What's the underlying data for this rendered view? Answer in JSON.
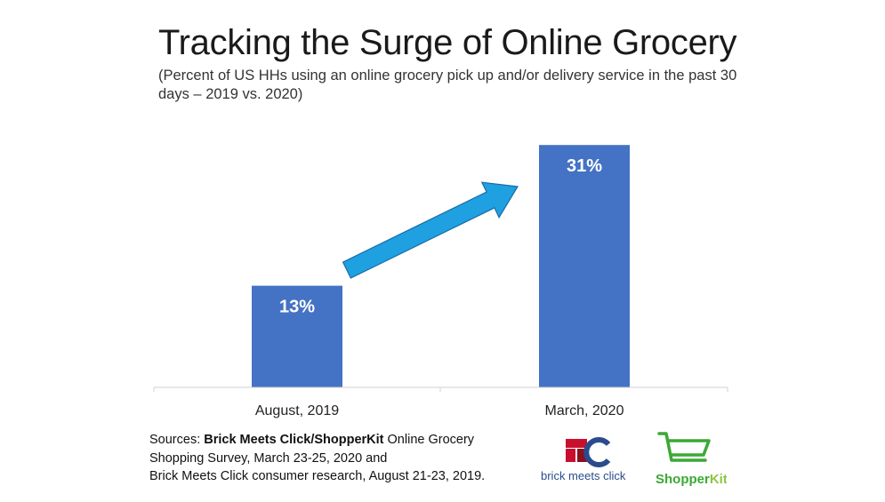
{
  "title": "Tracking the Surge of Online Grocery",
  "subtitle": "(Percent of US HHs using an online grocery pick up and/or delivery service in the past 30 days – 2019 vs. 2020)",
  "chart_data": {
    "type": "bar",
    "categories": [
      "August, 2019",
      "March, 2020"
    ],
    "values": [
      13,
      31
    ],
    "data_labels": [
      "13%",
      "31%"
    ],
    "ylim": [
      0,
      35
    ],
    "grid": false,
    "legend": "none",
    "bar_color": "#4472C4",
    "arrow_color": "#1FA0E0",
    "annotation": "upward trend arrow between bars"
  },
  "sources": {
    "prefix": "Sources: ",
    "brand": "Brick Meets Click/ShopperKit",
    "line1_rest": " Online Grocery",
    "line2": "Shopping Survey, March 23-25, 2020 and",
    "line3": "Brick Meets Click consumer research, August 21-23, 2019."
  },
  "logos": {
    "bmc_text": "brick meets click",
    "bmc_colors": [
      "#C8102E",
      "#2A4C8C"
    ],
    "sk_text_a": "Shopper",
    "sk_text_b": "Kit",
    "sk_color": "#3AA935",
    "sk_accent": "#8DC63F"
  }
}
